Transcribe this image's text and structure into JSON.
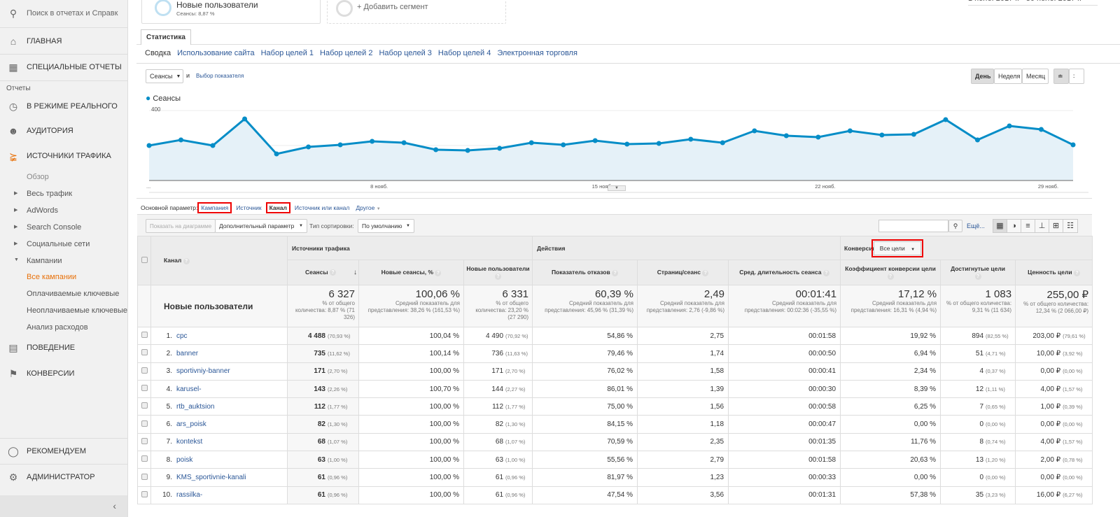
{
  "sidebar": {
    "search_placeholder": "Поиск в отчетах и Справк",
    "home": "ГЛАВНАЯ",
    "custom": "СПЕЦИАЛЬНЫЕ ОТЧЕТЫ",
    "reports_label": "Отчеты",
    "realtime": "В РЕЖИМЕ РЕАЛЬНОГО",
    "audience": "АУДИТОРИЯ",
    "acquisition": "ИСТОЧНИКИ ТРАФИКА",
    "sub": [
      "Обзор",
      "Весь трафик",
      "AdWords",
      "Search Console",
      "Социальные сети",
      "Кампании",
      "Все кампании",
      "Оплачиваемые ключевые",
      "Неоплачиваемые ключевые",
      "Анализ расходов"
    ],
    "behavior": "ПОВЕДЕНИЕ",
    "conversions": "КОНВЕРСИИ",
    "discover": "РЕКОМЕНДУЕМ",
    "admin": "АДМИНИСТРАТОР",
    "active_color": "#e8710a"
  },
  "segments": {
    "seg1_title": "Новые пользователи",
    "seg1_sub": "Сеансы: 8,87 %",
    "add": "+ Добавить сегмент",
    "date_range": "1 нояб. 2017 г. - 30 нояб. 2017 г."
  },
  "tabs": {
    "main": "Статистика",
    "sub": [
      "Сводка",
      "Использование сайта",
      "Набор целей 1",
      "Набор целей 2",
      "Набор целей 3",
      "Набор целей 4",
      "Электронная торговля"
    ]
  },
  "controls": {
    "metric": "Сеансы",
    "and": "и",
    "choose_metric": "Выбор показателя",
    "day": "День",
    "week": "Неделя",
    "month": "Месяц"
  },
  "chart_data": {
    "type": "area",
    "series": [
      {
        "name": "Сеансы",
        "color": "#058dc7",
        "values": [
          200,
          232,
          200,
          352,
          152,
          192,
          204,
          224,
          216,
          176,
          172,
          184,
          216,
          204,
          228,
          208,
          212,
          236,
          216,
          284,
          256,
          248,
          284,
          260,
          264,
          348,
          232,
          312,
          292,
          204
        ]
      }
    ],
    "x": [
      "1 нояб.",
      "2 нояб.",
      "3 нояб.",
      "4 нояб.",
      "5 нояб.",
      "6 нояб.",
      "7 нояб.",
      "8 нояб.",
      "9 нояб.",
      "10 нояб.",
      "11 нояб.",
      "12 нояб.",
      "13 нояб.",
      "14 нояб.",
      "15 нояб.",
      "16 нояб.",
      "17 нояб.",
      "18 нояб.",
      "19 нояб.",
      "20 нояб.",
      "21 нояб.",
      "22 нояб.",
      "23 нояб.",
      "24 нояб.",
      "25 нояб.",
      "26 нояб.",
      "27 нояб.",
      "28 нояб.",
      "29 нояб.",
      "30 нояб."
    ],
    "xticks": [
      "...",
      "8 нояб.",
      "15 нояб.",
      "22 нояб.",
      "29 нояб."
    ],
    "yticks": [
      "400",
      "200"
    ],
    "ylim": [
      0,
      400
    ],
    "grid": true,
    "legend": "top-left"
  },
  "dims": {
    "label": "Основной параметр:",
    "items": [
      "Кампания",
      "Источник",
      "Канал",
      "Источник или канал",
      "Другое"
    ]
  },
  "toolbar": {
    "plot": "Показать на диаграмме",
    "secondary": "Дополнительный параметр",
    "sort_label": "Тип сортировки:",
    "sort": "По умолчанию",
    "more": "Ещё..."
  },
  "table": {
    "col_channel": "Канал",
    "grp_acq": "Источники трафика",
    "grp_beh": "Действия",
    "grp_conv": "Конверсии",
    "goal_select": "Все цели",
    "cols": [
      "Сеансы",
      "Новые сеансы, %",
      "Новые пользователи",
      "Показатель отказов",
      "Страниц/сеанс",
      "Сред. длительность сеанса",
      "Коэффициент конверсии цели",
      "Достигнутые цели",
      "Ценность цели"
    ],
    "summary": {
      "label": "Новые пользователи",
      "cells": [
        [
          "6 327",
          "% от общего количества: 8,87 % (71 326)"
        ],
        [
          "100,06 %",
          "Средний показатель для представления: 38,26 % (161,53 %)"
        ],
        [
          "6 331",
          "% от общего количества: 23,20 % (27 290)"
        ],
        [
          "60,39 %",
          "Средний показатель для представления: 45,96 % (31,39 %)"
        ],
        [
          "2,49",
          "Средний показатель для представления: 2,76 (-9,86 %)"
        ],
        [
          "00:01:41",
          "Средний показатель для представления: 00:02:36 (-35,55 %)"
        ],
        [
          "17,12 %",
          "Средний показатель для представления: 16,31 % (4,94 %)"
        ],
        [
          "1 083",
          "% от общего количества: 9,31 % (11 634)"
        ],
        [
          "255,00 ₽",
          "% от общего количества: 12,34 % (2 066,00 ₽)"
        ]
      ]
    },
    "rows": [
      {
        "n": "1.",
        "name": "cpc",
        "s": "4 488",
        "sp": "(70,93 %)",
        "ns": "100,04 %",
        "nu": "4 490",
        "nup": "(70,92 %)",
        "br": "54,86 %",
        "pps": "2,75",
        "dur": "00:01:58",
        "cr": "19,92 %",
        "g": "894",
        "gp": "(82,55 %)",
        "v": "203,00 ₽",
        "vp": "(79,61 %)"
      },
      {
        "n": "2.",
        "name": "banner",
        "s": "735",
        "sp": "(11,62 %)",
        "ns": "100,14 %",
        "nu": "736",
        "nup": "(11,63 %)",
        "br": "79,46 %",
        "pps": "1,74",
        "dur": "00:00:50",
        "cr": "6,94 %",
        "g": "51",
        "gp": "(4,71 %)",
        "v": "10,00 ₽",
        "vp": "(3,92 %)"
      },
      {
        "n": "3.",
        "name": "sportivniy-banner",
        "s": "171",
        "sp": "(2,70 %)",
        "ns": "100,00 %",
        "nu": "171",
        "nup": "(2,70 %)",
        "br": "76,02 %",
        "pps": "1,58",
        "dur": "00:00:41",
        "cr": "2,34 %",
        "g": "4",
        "gp": "(0,37 %)",
        "v": "0,00 ₽",
        "vp": "(0,00 %)"
      },
      {
        "n": "4.",
        "name": "karusel-",
        "s": "143",
        "sp": "(2,26 %)",
        "ns": "100,70 %",
        "nu": "144",
        "nup": "(2,27 %)",
        "br": "86,01 %",
        "pps": "1,39",
        "dur": "00:00:30",
        "cr": "8,39 %",
        "g": "12",
        "gp": "(1,11 %)",
        "v": "4,00 ₽",
        "vp": "(1,57 %)"
      },
      {
        "n": "5.",
        "name": "rtb_auktsion",
        "s": "112",
        "sp": "(1,77 %)",
        "ns": "100,00 %",
        "nu": "112",
        "nup": "(1,77 %)",
        "br": "75,00 %",
        "pps": "1,56",
        "dur": "00:00:58",
        "cr": "6,25 %",
        "g": "7",
        "gp": "(0,65 %)",
        "v": "1,00 ₽",
        "vp": "(0,39 %)"
      },
      {
        "n": "6.",
        "name": "ars_poisk",
        "s": "82",
        "sp": "(1,30 %)",
        "ns": "100,00 %",
        "nu": "82",
        "nup": "(1,30 %)",
        "br": "84,15 %",
        "pps": "1,18",
        "dur": "00:00:47",
        "cr": "0,00 %",
        "g": "0",
        "gp": "(0,00 %)",
        "v": "0,00 ₽",
        "vp": "(0,00 %)"
      },
      {
        "n": "7.",
        "name": "kontekst",
        "s": "68",
        "sp": "(1,07 %)",
        "ns": "100,00 %",
        "nu": "68",
        "nup": "(1,07 %)",
        "br": "70,59 %",
        "pps": "2,35",
        "dur": "00:01:35",
        "cr": "11,76 %",
        "g": "8",
        "gp": "(0,74 %)",
        "v": "4,00 ₽",
        "vp": "(1,57 %)"
      },
      {
        "n": "8.",
        "name": "poisk",
        "s": "63",
        "sp": "(1,00 %)",
        "ns": "100,00 %",
        "nu": "63",
        "nup": "(1,00 %)",
        "br": "55,56 %",
        "pps": "2,79",
        "dur": "00:01:58",
        "cr": "20,63 %",
        "g": "13",
        "gp": "(1,20 %)",
        "v": "2,00 ₽",
        "vp": "(0,78 %)"
      },
      {
        "n": "9.",
        "name": "KMS_sportivnie-kanali",
        "s": "61",
        "sp": "(0,96 %)",
        "ns": "100,00 %",
        "nu": "61",
        "nup": "(0,96 %)",
        "br": "81,97 %",
        "pps": "1,23",
        "dur": "00:00:33",
        "cr": "0,00 %",
        "g": "0",
        "gp": "(0,00 %)",
        "v": "0,00 ₽",
        "vp": "(0,00 %)"
      },
      {
        "n": "10.",
        "name": "rassilka-",
        "s": "61",
        "sp": "(0,96 %)",
        "ns": "100,00 %",
        "nu": "61",
        "nup": "(0,96 %)",
        "br": "47,54 %",
        "pps": "3,56",
        "dur": "00:01:31",
        "cr": "57,38 %",
        "g": "35",
        "gp": "(3,23 %)",
        "v": "16,00 ₽",
        "vp": "(6,27 %)"
      }
    ]
  }
}
